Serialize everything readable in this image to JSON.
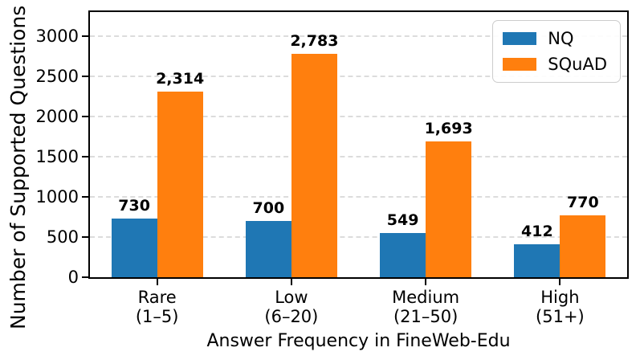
{
  "chart_data": {
    "type": "bar",
    "title": "",
    "xlabel": "Answer Frequency in FineWeb-Edu",
    "ylabel": "Number of Supported Questions",
    "categories": [
      {
        "line1": "Rare",
        "line2": "(1–5)"
      },
      {
        "line1": "Low",
        "line2": "(6–20)"
      },
      {
        "line1": "Medium",
        "line2": "(21–50)"
      },
      {
        "line1": "High",
        "line2": "(51+)"
      }
    ],
    "series": [
      {
        "name": "NQ",
        "color": "#1f77b4",
        "values": [
          730,
          700,
          549,
          412
        ],
        "labels": [
          "730",
          "700",
          "549",
          "412"
        ]
      },
      {
        "name": "SQuAD",
        "color": "#ff7f0e",
        "values": [
          2314,
          2783,
          1693,
          770
        ],
        "labels": [
          "2,314",
          "2,783",
          "1,693",
          "770"
        ]
      }
    ],
    "yticks": [
      0,
      500,
      1000,
      1500,
      2000,
      2500,
      3000
    ],
    "ylim": [
      0,
      3300
    ],
    "grid": "horizontal-dashed",
    "legend_position": "top-right"
  },
  "colors": {
    "nq": "#1f77b4",
    "squad": "#ff7f0e",
    "grid": "#dcdcdc",
    "axis": "#000000",
    "legend_border": "#cccccc",
    "background": "#ffffff"
  }
}
